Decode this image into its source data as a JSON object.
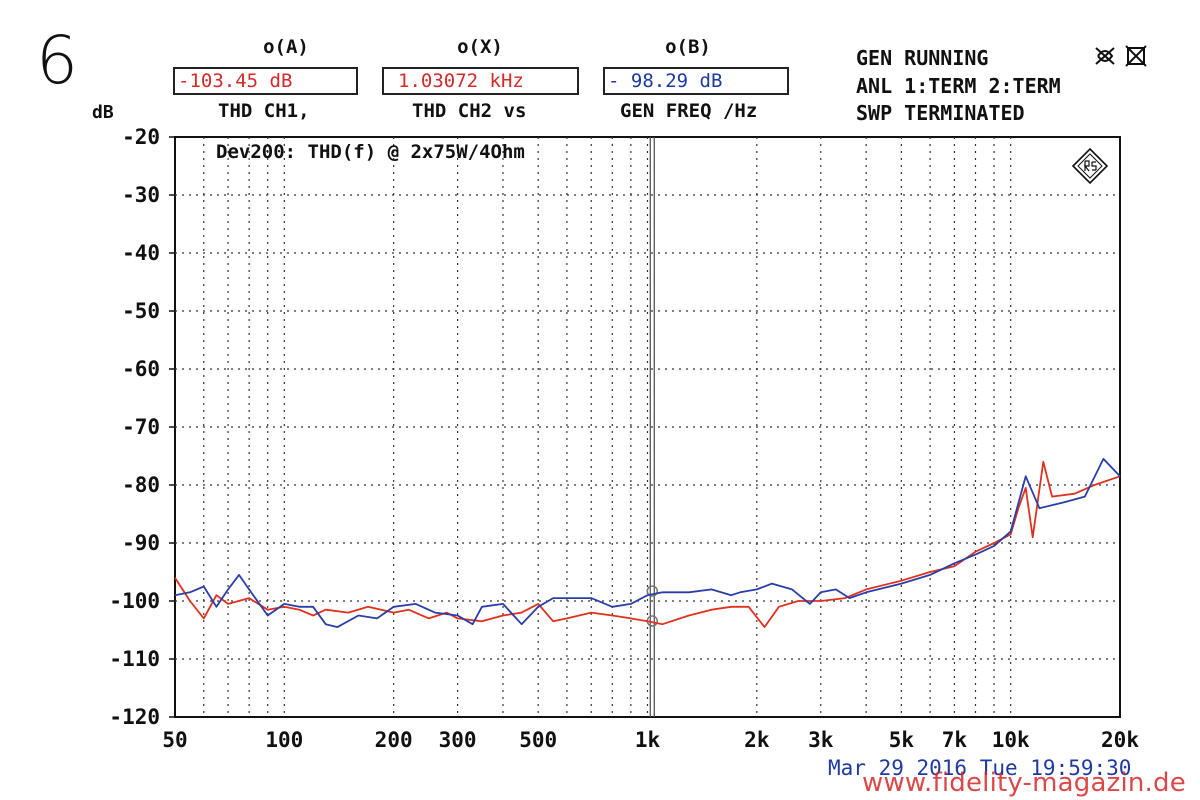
{
  "figure_number": "6",
  "readouts": [
    {
      "title": "o(A)",
      "value": "-103.45 dB",
      "color": "#d42a2a",
      "sub": "THD   CH1,"
    },
    {
      "title": "o(X)",
      "value": "1.03072 kHz",
      "color": "#d42a2a",
      "sub": "THD   CH2 vs"
    },
    {
      "title": "o(B)",
      "value": "- 98.29 dB",
      "color": "#1e3aa0",
      "sub": "GEN FREQ /Hz"
    }
  ],
  "status": {
    "line1": "GEN RUNNING",
    "line2": "ANL 1:TERM 2:TERM",
    "line3": "SWP TERMINATED",
    "icons": [
      "probe-crossed-icon",
      "cursor-crossed-icon"
    ]
  },
  "timestamp": "Mar 29 2016 Tue 19:59:30",
  "watermark": "www.fidelity-magazin.de",
  "chart_data": {
    "type": "line",
    "title": "Dev200: THD(f) @ 2x75W/4Ohm",
    "xlabel": "",
    "ylabel": "dB",
    "x_scale": "log",
    "xlim": [
      50,
      20000
    ],
    "ylim": [
      -120,
      -20
    ],
    "grid": true,
    "x_ticks": [
      50,
      100,
      200,
      300,
      500,
      1000,
      2000,
      3000,
      5000,
      7000,
      10000,
      20000
    ],
    "x_tick_labels": [
      "50",
      "100",
      "200",
      "300",
      "500",
      "1k",
      "2k",
      "3k",
      "5k",
      "7k",
      "10k",
      "20k"
    ],
    "y_ticks": [
      -20,
      -30,
      -40,
      -50,
      -60,
      -70,
      -80,
      -90,
      -100,
      -110,
      -120
    ],
    "y_tick_labels": [
      "-20",
      "-30",
      "-40",
      "-50",
      "-60",
      "-70",
      "-80",
      "-90",
      "-100",
      "-110",
      "-120"
    ],
    "cursor_x": 1030.72,
    "series": [
      {
        "color": "#e0301e",
        "points": [
          [
            50,
            -96
          ],
          [
            55,
            -100
          ],
          [
            60,
            -103
          ],
          [
            65,
            -99
          ],
          [
            70,
            -100.5
          ],
          [
            80,
            -99.5
          ],
          [
            90,
            -101.5
          ],
          [
            100,
            -101
          ],
          [
            110,
            -101.5
          ],
          [
            120,
            -102.5
          ],
          [
            130,
            -101.5
          ],
          [
            150,
            -102
          ],
          [
            170,
            -101
          ],
          [
            200,
            -102
          ],
          [
            220,
            -101.5
          ],
          [
            250,
            -103
          ],
          [
            280,
            -102
          ],
          [
            300,
            -103
          ],
          [
            350,
            -103.5
          ],
          [
            400,
            -102.5
          ],
          [
            450,
            -102
          ],
          [
            500,
            -100.5
          ],
          [
            550,
            -103.5
          ],
          [
            600,
            -103
          ],
          [
            700,
            -102
          ],
          [
            800,
            -102.5
          ],
          [
            900,
            -103
          ],
          [
            1000,
            -103.5
          ],
          [
            1100,
            -104
          ],
          [
            1300,
            -102.5
          ],
          [
            1500,
            -101.5
          ],
          [
            1700,
            -101
          ],
          [
            1900,
            -101
          ],
          [
            2100,
            -104.5
          ],
          [
            2300,
            -101
          ],
          [
            2600,
            -100
          ],
          [
            3000,
            -100
          ],
          [
            3500,
            -99.5
          ],
          [
            4000,
            -98
          ],
          [
            5000,
            -96.5
          ],
          [
            6000,
            -95
          ],
          [
            7000,
            -94
          ],
          [
            8000,
            -91.5
          ],
          [
            9000,
            -90
          ],
          [
            10000,
            -88.5
          ],
          [
            10500,
            -84
          ],
          [
            11000,
            -80.5
          ],
          [
            11500,
            -89
          ],
          [
            12300,
            -76
          ],
          [
            13000,
            -82
          ],
          [
            15000,
            -81.5
          ],
          [
            17000,
            -80
          ],
          [
            20000,
            -78.5
          ]
        ]
      },
      {
        "color": "#2a3ea8",
        "points": [
          [
            50,
            -99
          ],
          [
            55,
            -98.5
          ],
          [
            60,
            -97.5
          ],
          [
            65,
            -101
          ],
          [
            70,
            -98
          ],
          [
            75,
            -95.5
          ],
          [
            80,
            -98
          ],
          [
            90,
            -102.5
          ],
          [
            100,
            -100.5
          ],
          [
            110,
            -101
          ],
          [
            120,
            -101
          ],
          [
            130,
            -104
          ],
          [
            140,
            -104.5
          ],
          [
            160,
            -102.5
          ],
          [
            180,
            -103
          ],
          [
            200,
            -101
          ],
          [
            230,
            -100.5
          ],
          [
            260,
            -102
          ],
          [
            300,
            -102.5
          ],
          [
            330,
            -104
          ],
          [
            350,
            -101
          ],
          [
            400,
            -100.5
          ],
          [
            450,
            -104
          ],
          [
            500,
            -101
          ],
          [
            550,
            -99.5
          ],
          [
            600,
            -99.5
          ],
          [
            700,
            -99.5
          ],
          [
            800,
            -101
          ],
          [
            900,
            -100.5
          ],
          [
            1000,
            -99
          ],
          [
            1100,
            -98.5
          ],
          [
            1300,
            -98.5
          ],
          [
            1500,
            -98
          ],
          [
            1700,
            -99
          ],
          [
            1800,
            -98.5
          ],
          [
            2000,
            -98
          ],
          [
            2200,
            -97
          ],
          [
            2500,
            -98
          ],
          [
            2800,
            -100.5
          ],
          [
            3000,
            -98.5
          ],
          [
            3300,
            -98
          ],
          [
            3600,
            -99.5
          ],
          [
            4000,
            -98.5
          ],
          [
            5000,
            -97
          ],
          [
            6000,
            -95.5
          ],
          [
            7000,
            -93.5
          ],
          [
            8000,
            -92
          ],
          [
            9000,
            -90.5
          ],
          [
            10000,
            -88
          ],
          [
            11000,
            -78.5
          ],
          [
            12000,
            -84
          ],
          [
            14000,
            -83
          ],
          [
            16000,
            -82
          ],
          [
            18000,
            -75.5
          ],
          [
            20000,
            -78.5
          ]
        ]
      }
    ]
  }
}
